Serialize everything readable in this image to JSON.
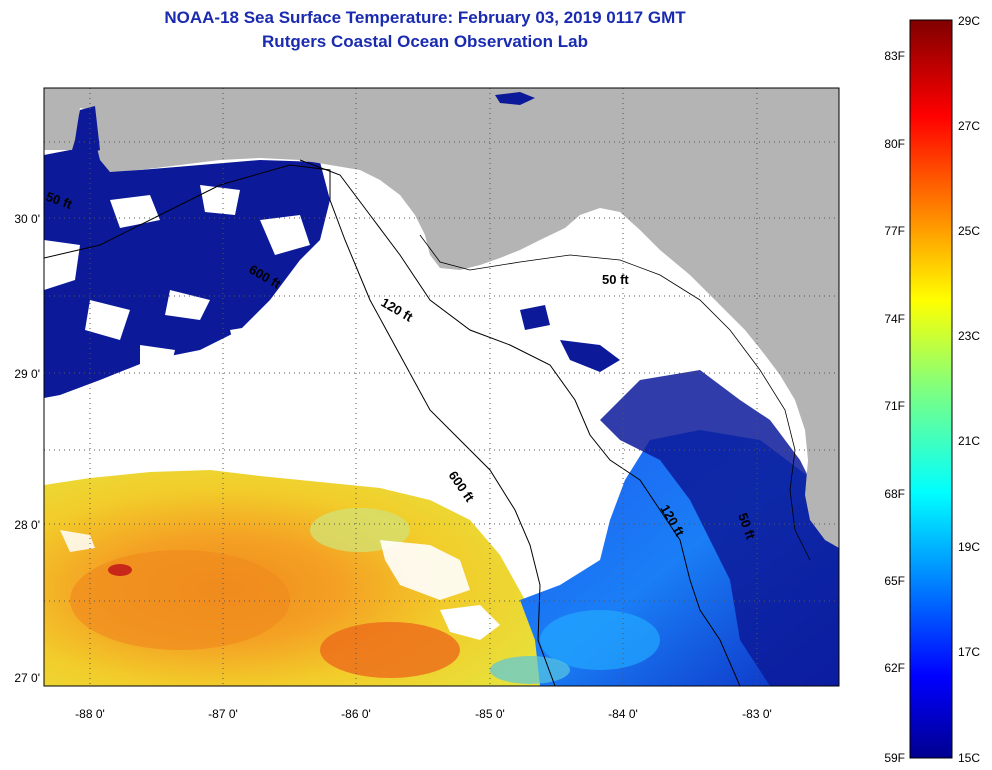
{
  "header": {
    "title_line1": "NOAA-18 Sea Surface Temperature:  February 03, 2019 0117 GMT",
    "title_line2": "Rutgers Coastal Ocean Observation Lab"
  },
  "map": {
    "region": "Northeastern Gulf of Mexico / Florida Big Bend",
    "lon_range": [
      -88.35,
      -82.45
    ],
    "lat_range": [
      26.97,
      30.9
    ],
    "lon_ticks": [
      "-88 0'",
      "-87 0'",
      "-86 0'",
      "-85 0'",
      "-84 0'",
      "-83 0'"
    ],
    "lat_ticks": [
      "27 0'",
      "28 0'",
      "29 0'",
      "30 0'"
    ],
    "grid": "dotted",
    "contours": [
      "50 ft",
      "120 ft",
      "600 ft"
    ],
    "contour_labels": [
      "50 ft",
      "600 ft",
      "120 ft",
      "50 ft",
      "120 ft",
      "50 ft"
    ],
    "colors": {
      "land": "#b4b4b4",
      "cloud": "#ffffff",
      "cold_water": "#0c1a9a",
      "warm_water": "#f4a020"
    }
  },
  "colorbar": {
    "celsius_labels": [
      "29C",
      "27C",
      "25C",
      "23C",
      "21C",
      "19C",
      "17C",
      "15C"
    ],
    "fahrenheit_labels": [
      "83F",
      "80F",
      "77F",
      "74F",
      "71F",
      "68F",
      "65F",
      "62F",
      "59F"
    ],
    "range_c": [
      15,
      29
    ],
    "colormap": "jet"
  }
}
